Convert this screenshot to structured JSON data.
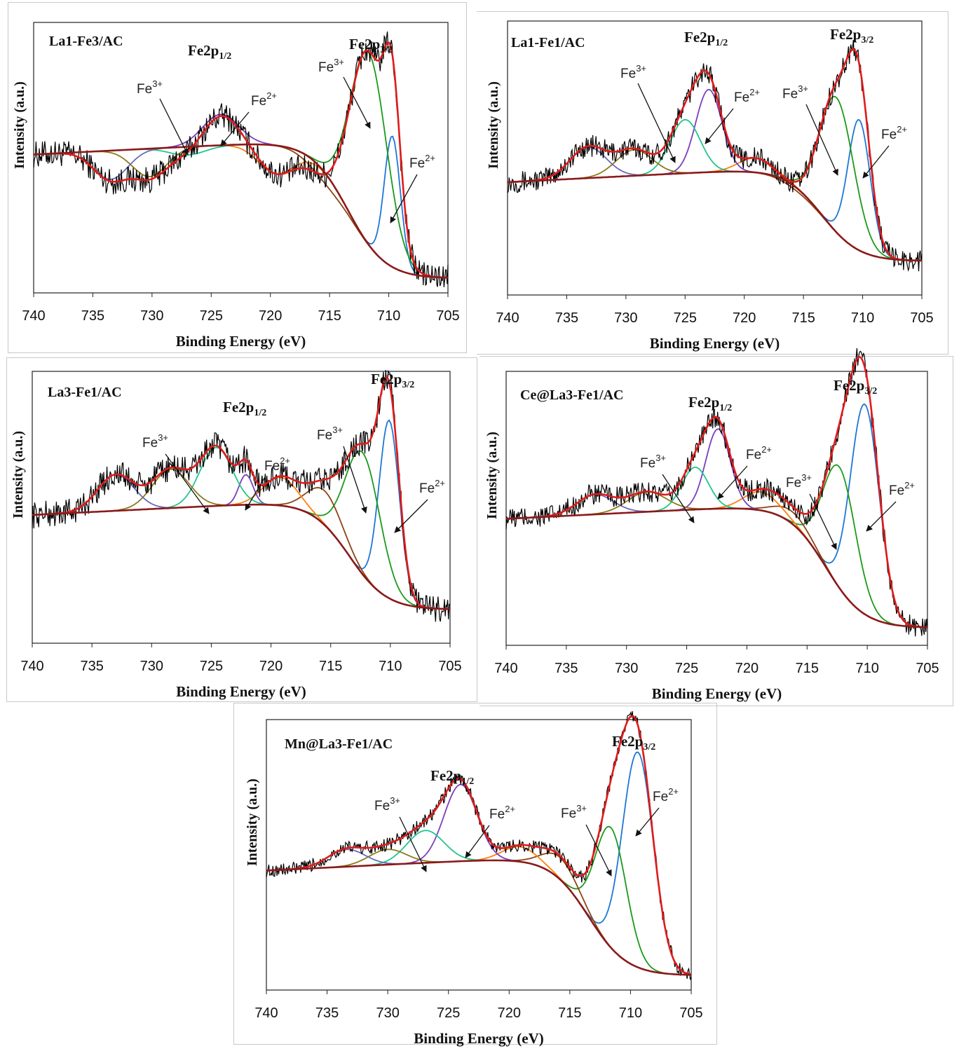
{
  "units": {
    "axis_unit": "eV"
  },
  "colors": {
    "raw": "#000000",
    "envelope": "#e01b1b",
    "background": "#8b1a1a",
    "components": [
      "#1f77d4",
      "#1a9a1a",
      "#8b4513",
      "#ff7f0e",
      "#7b3fbf",
      "#22c58a",
      "#8b7a1a",
      "#6a6ab8"
    ]
  },
  "chart_data": [
    {
      "type": "line",
      "subtype": "xps-deconvolution",
      "title": "La1-Fe3/AC",
      "xlabel": "Binding Energy (eV)",
      "ylabel": "Intensity (a.u.)",
      "xlim": [
        740,
        705
      ],
      "ylim": [
        0,
        100
      ],
      "x_ticks": [
        "740",
        "735",
        "730",
        "725",
        "720",
        "715",
        "710",
        "705"
      ],
      "peak_labels": {
        "p12": {
          "base": "Fe2p",
          "sub": "1/2"
        },
        "p32": {
          "base": "Fe2p",
          "sub": "3/2"
        }
      },
      "ion_labels": [
        {
          "base": "Fe",
          "sup": "3+"
        },
        {
          "base": "Fe",
          "sup": "2+"
        },
        {
          "base": "Fe",
          "sup": "3+"
        },
        {
          "base": "Fe",
          "sup": "2+"
        }
      ],
      "background_level": {
        "low_be": 5,
        "high_be": 57
      },
      "components": [
        {
          "center": 709.7,
          "fwhm": 1.6,
          "height": 58
        },
        {
          "center": 711.7,
          "fwhm": 3.6,
          "height": 89
        },
        {
          "center": 715.5,
          "fwhm": 3.6,
          "height": 41
        },
        {
          "center": 719.5,
          "fwhm": 3.6,
          "height": 44
        },
        {
          "center": 724.2,
          "fwhm": 3.6,
          "height": 66
        },
        {
          "center": 727.0,
          "fwhm": 3.6,
          "height": 51
        },
        {
          "center": 730.2,
          "fwhm": 3.4,
          "height": 43
        },
        {
          "center": 733.5,
          "fwhm": 3.4,
          "height": 42
        }
      ],
      "noise_amplitude": 5
    },
    {
      "type": "line",
      "subtype": "xps-deconvolution",
      "title": "La1-Fe1/AC",
      "xlabel": "Binding Energy (eV)",
      "ylabel": "Intensity (a.u.)",
      "xlim": [
        740,
        705
      ],
      "ylim": [
        0,
        100
      ],
      "x_ticks": [
        "740",
        "735",
        "730",
        "725",
        "720",
        "715",
        "710",
        "705"
      ],
      "peak_labels": {
        "p12": {
          "base": "Fe2p",
          "sub": "1/2"
        },
        "p32": {
          "base": "Fe2p",
          "sub": "3/2"
        }
      },
      "ion_labels": [
        {
          "base": "Fe",
          "sup": "3+"
        },
        {
          "base": "Fe",
          "sup": "2+"
        },
        {
          "base": "Fe",
          "sup": "3+"
        },
        {
          "base": "Fe",
          "sup": "2+"
        }
      ],
      "background_level": {
        "low_be": 12,
        "high_be": 47
      },
      "components": [
        {
          "center": 710.3,
          "fwhm": 2.2,
          "height": 64
        },
        {
          "center": 712.2,
          "fwhm": 3.4,
          "height": 72
        },
        {
          "center": 715.6,
          "fwhm": 3.4,
          "height": 38
        },
        {
          "center": 719.0,
          "fwhm": 3.4,
          "height": 50
        },
        {
          "center": 723.0,
          "fwhm": 2.6,
          "height": 75
        },
        {
          "center": 725.0,
          "fwhm": 3.0,
          "height": 64
        },
        {
          "center": 729.3,
          "fwhm": 3.6,
          "height": 53
        },
        {
          "center": 733.2,
          "fwhm": 3.6,
          "height": 54
        }
      ],
      "noise_amplitude": 4
    },
    {
      "type": "line",
      "subtype": "xps-deconvolution",
      "title": "La3-Fe1/AC",
      "xlabel": "Binding Energy (eV)",
      "ylabel": "Intensity (a.u.)",
      "xlim": [
        740,
        705
      ],
      "ylim": [
        0,
        100
      ],
      "x_ticks": [
        "740",
        "735",
        "730",
        "725",
        "720",
        "715",
        "710",
        "705"
      ],
      "peak_labels": {
        "p12": {
          "base": "Fe2p",
          "sub": "1/2"
        },
        "p32": {
          "base": "Fe2p",
          "sub": "3/2"
        }
      },
      "ion_labels": [
        {
          "base": "Fe",
          "sup": "3+"
        },
        {
          "base": "Fe",
          "sup": "2+"
        },
        {
          "base": "Fe",
          "sup": "3+"
        },
        {
          "base": "Fe",
          "sup": "2+"
        }
      ],
      "background_level": {
        "low_be": 12,
        "high_be": 53
      },
      "components": [
        {
          "center": 710.1,
          "fwhm": 2.0,
          "height": 82
        },
        {
          "center": 712.3,
          "fwhm": 3.4,
          "height": 70
        },
        {
          "center": 715.5,
          "fwhm": 3.4,
          "height": 56
        },
        {
          "center": 719.2,
          "fwhm": 3.4,
          "height": 61
        },
        {
          "center": 722.1,
          "fwhm": 1.4,
          "height": 62
        },
        {
          "center": 724.6,
          "fwhm": 3.2,
          "height": 72
        },
        {
          "center": 728.4,
          "fwhm": 3.6,
          "height": 64
        },
        {
          "center": 733.0,
          "fwhm": 3.6,
          "height": 62
        }
      ],
      "noise_amplitude": 5
    },
    {
      "type": "line",
      "subtype": "xps-deconvolution",
      "title": "Ce@La3-Fe1/AC",
      "xlabel": "Binding Energy (eV)",
      "ylabel": "Intensity (a.u.)",
      "xlim": [
        740,
        705
      ],
      "ylim": [
        0,
        100
      ],
      "x_ticks": [
        "740",
        "735",
        "730",
        "725",
        "720",
        "715",
        "710",
        "705"
      ],
      "peak_labels": {
        "p12": {
          "base": "Fe2p",
          "sub": "1/2"
        },
        "p32": {
          "base": "Fe2p",
          "sub": "3/2"
        }
      },
      "ion_labels": [
        {
          "base": "Fe",
          "sup": "3+"
        },
        {
          "base": "Fe",
          "sup": "2+"
        },
        {
          "base": "Fe",
          "sup": "3+"
        },
        {
          "base": "Fe",
          "sup": "2+"
        }
      ],
      "background_level": {
        "low_be": 6,
        "high_be": 52
      },
      "components": [
        {
          "center": 710.2,
          "fwhm": 2.8,
          "height": 88
        },
        {
          "center": 712.3,
          "fwhm": 3.2,
          "height": 65
        },
        {
          "center": 716.3,
          "fwhm": 3.4,
          "height": 49
        },
        {
          "center": 718.8,
          "fwhm": 3.4,
          "height": 56
        },
        {
          "center": 722.4,
          "fwhm": 2.4,
          "height": 79
        },
        {
          "center": 724.3,
          "fwhm": 2.6,
          "height": 65
        },
        {
          "center": 728.3,
          "fwhm": 3.8,
          "height": 56
        },
        {
          "center": 732.6,
          "fwhm": 3.6,
          "height": 55
        }
      ],
      "noise_amplitude": 4
    },
    {
      "type": "line",
      "subtype": "xps-deconvolution",
      "title": "Mn@La3-Fe1/AC",
      "xlabel": "Binding Energy (eV)",
      "ylabel": "Intensity (a.u.)",
      "xlim": [
        740,
        705
      ],
      "ylim": [
        0,
        100
      ],
      "x_ticks": [
        "740",
        "735",
        "730",
        "725",
        "720",
        "715",
        "710",
        "705"
      ],
      "peak_labels": {
        "p12": {
          "base": "Fe2p",
          "sub": "1/2"
        },
        "p32": {
          "base": "Fe2p",
          "sub": "3/2"
        }
      },
      "ion_labels": [
        {
          "base": "Fe",
          "sup": "3+"
        },
        {
          "base": "Fe",
          "sup": "2+"
        },
        {
          "base": "Fe",
          "sup": "3+"
        },
        {
          "base": "Fe",
          "sup": "2+"
        }
      ],
      "background_level": {
        "low_be": 5,
        "high_be": 50
      },
      "components": [
        {
          "center": 709.4,
          "fwhm": 3.0,
          "height": 88
        },
        {
          "center": 711.6,
          "fwhm": 3.0,
          "height": 60
        },
        {
          "center": 715.8,
          "fwhm": 3.4,
          "height": 49
        },
        {
          "center": 719.1,
          "fwhm": 3.4,
          "height": 53
        },
        {
          "center": 724.0,
          "fwhm": 3.2,
          "height": 76
        },
        {
          "center": 726.9,
          "fwhm": 3.6,
          "height": 59
        },
        {
          "center": 730.0,
          "fwhm": 3.6,
          "height": 52
        },
        {
          "center": 733.4,
          "fwhm": 3.6,
          "height": 52
        }
      ],
      "noise_amplitude": 2.5
    }
  ]
}
